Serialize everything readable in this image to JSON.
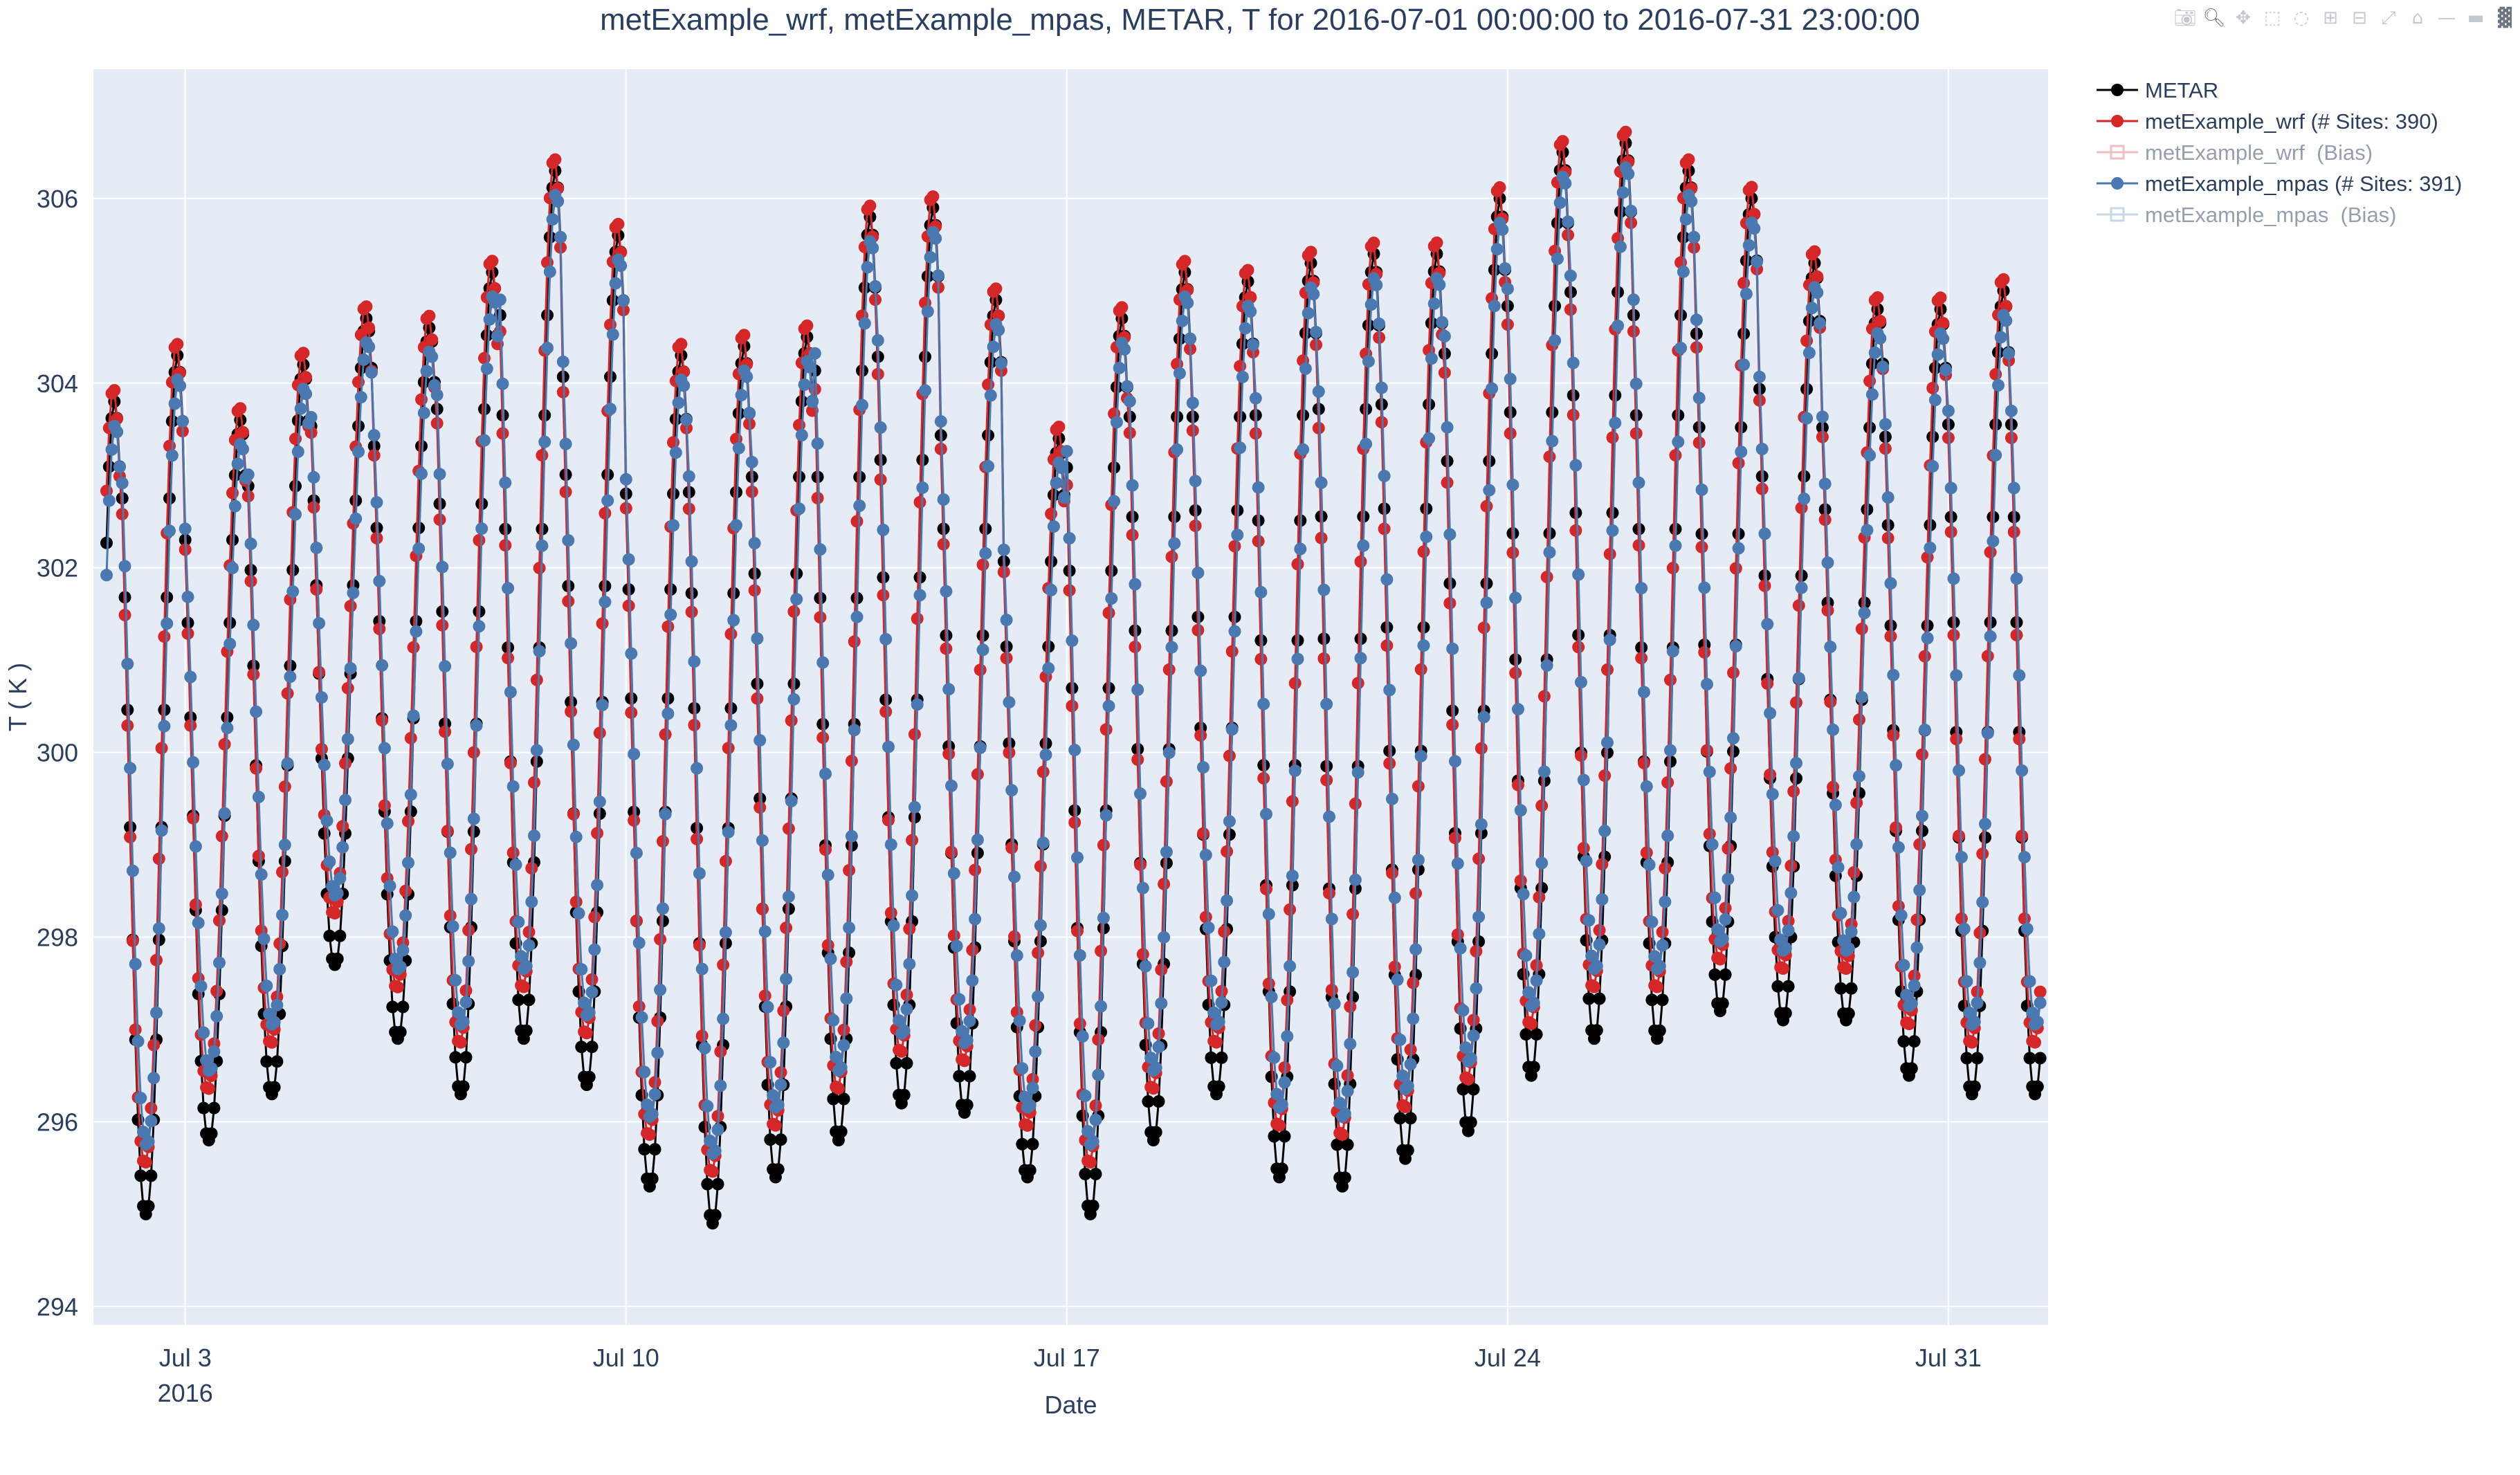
{
  "chart_data": {
    "type": "line",
    "title": "metExample_wrf, metExample_mpas, METAR, T for 2016-07-01 00:00:00 to 2016-07-31 23:00:00",
    "xlabel": "Date",
    "ylabel": "T ( K )",
    "xlim": [
      "2016-07-01 13:00",
      "2016-08-01 14:00"
    ],
    "ylim": [
      293.8,
      307.4
    ],
    "x_ticks": [
      {
        "date": "2016-07-03",
        "label": "Jul 3",
        "sublabel": "2016"
      },
      {
        "date": "2016-07-10",
        "label": "Jul 10",
        "sublabel": ""
      },
      {
        "date": "2016-07-17",
        "label": "Jul 17",
        "sublabel": ""
      },
      {
        "date": "2016-07-24",
        "label": "Jul 24",
        "sublabel": ""
      },
      {
        "date": "2016-07-31",
        "label": "Jul 31",
        "sublabel": ""
      }
    ],
    "y_ticks": [
      294,
      296,
      298,
      300,
      302,
      304,
      306
    ],
    "grid": true,
    "legend_position": "top-right, outside plot",
    "series_start": "2016-07-01 18:00",
    "series_step_hours": 1,
    "daily_cycles": [
      {
        "day": 1,
        "min": 294.6,
        "max": 303.8
      },
      {
        "day": 2,
        "min": 295.0,
        "max": 304.3
      },
      {
        "day": 3,
        "min": 295.8,
        "max": 303.6
      },
      {
        "day": 4,
        "min": 296.3,
        "max": 304.2
      },
      {
        "day": 5,
        "min": 297.7,
        "max": 304.7
      },
      {
        "day": 6,
        "min": 296.9,
        "max": 304.6
      },
      {
        "day": 7,
        "min": 296.3,
        "max": 305.2
      },
      {
        "day": 8,
        "min": 296.9,
        "max": 306.3
      },
      {
        "day": 9,
        "min": 296.4,
        "max": 305.6
      },
      {
        "day": 10,
        "min": 295.3,
        "max": 304.3
      },
      {
        "day": 11,
        "min": 294.9,
        "max": 304.4
      },
      {
        "day": 12,
        "min": 295.4,
        "max": 304.5
      },
      {
        "day": 13,
        "min": 295.8,
        "max": 305.8
      },
      {
        "day": 14,
        "min": 296.2,
        "max": 305.9
      },
      {
        "day": 15,
        "min": 296.1,
        "max": 304.9
      },
      {
        "day": 16,
        "min": 295.4,
        "max": 303.4
      },
      {
        "day": 17,
        "min": 295.0,
        "max": 304.7
      },
      {
        "day": 18,
        "min": 295.8,
        "max": 305.2
      },
      {
        "day": 19,
        "min": 296.3,
        "max": 305.1
      },
      {
        "day": 20,
        "min": 295.4,
        "max": 305.3
      },
      {
        "day": 21,
        "min": 295.3,
        "max": 305.4
      },
      {
        "day": 22,
        "min": 295.6,
        "max": 305.4
      },
      {
        "day": 23,
        "min": 295.9,
        "max": 306.0
      },
      {
        "day": 24,
        "min": 296.5,
        "max": 306.5
      },
      {
        "day": 25,
        "min": 296.9,
        "max": 306.6
      },
      {
        "day": 26,
        "min": 296.9,
        "max": 306.3
      },
      {
        "day": 27,
        "min": 297.2,
        "max": 306.0
      },
      {
        "day": 28,
        "min": 297.1,
        "max": 305.3
      },
      {
        "day": 29,
        "min": 297.1,
        "max": 304.8
      },
      {
        "day": 30,
        "min": 296.5,
        "max": 304.8
      },
      {
        "day": 31,
        "min": 296.3,
        "max": 305.0
      }
    ],
    "series": [
      {
        "name": "METAR",
        "color": "#000000",
        "min_offset": 0.0,
        "max_offset": 0.0,
        "phase_hours": 0
      },
      {
        "name": "metExample_wrf (# Sites: 390)",
        "color": "#d62728",
        "min_offset": 0.55,
        "max_offset": 0.15,
        "phase_hours": 0.4
      },
      {
        "name": "metExample_wrf  (Bias)",
        "color": "#e58080",
        "hidden": true
      },
      {
        "name": "metExample_mpas (# Sites: 391)",
        "color": "#4a78b0",
        "min_offset": 0.75,
        "max_offset": -0.25,
        "phase_hours": -0.3
      },
      {
        "name": "metExample_mpas  (Bias)",
        "color": "#8fb0d6",
        "hidden": true
      }
    ]
  },
  "modebar": {
    "icons": [
      "camera-icon",
      "zoom-icon",
      "pan-icon",
      "box-select-icon",
      "lasso-icon",
      "zoom-in-icon",
      "zoom-out-icon",
      "autoscale-icon",
      "home-icon",
      "spike-lines-icon",
      "hover-closest-icon",
      "plotly-logo-icon"
    ]
  }
}
